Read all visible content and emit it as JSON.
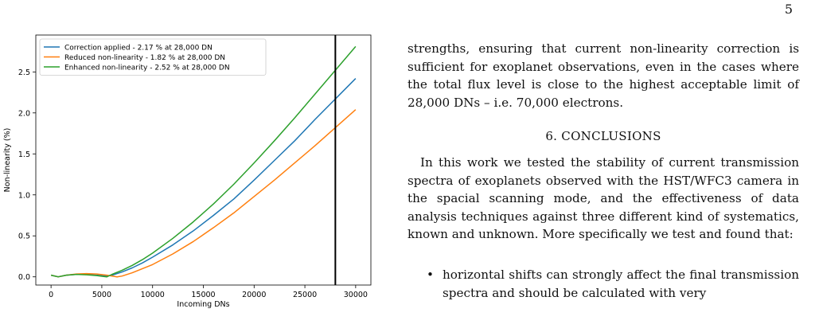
{
  "page_number": "5",
  "paragraphs": {
    "continuation": "strengths, ensuring that current non-linearity correction is sufficient for exoplanet observations, even in the cases where the total flux level is close to the highest acceptable limit of 28,000 DNs – i.e. 70,000 electrons.",
    "section_title": "6. CONCLUSIONS",
    "conclusions_intro": "In this work we tested the stability of current transmission spectra of exoplanets observed with the HST/WFC3 camera in the spacial scanning mode, and the effectiveness of data analysis techniques against three different kind of systematics, known and unknown. More specifically we test and found that:",
    "bullets": [
      "horizontal shifts can strongly affect the final transmission spectra and should be calculated with very"
    ]
  },
  "chart_data": {
    "type": "line",
    "title": "",
    "xlabel": "Incoming DNs",
    "ylabel": "Non-linearity (%)",
    "xlim": [
      -1500,
      31500
    ],
    "ylim": [
      -0.1,
      2.95
    ],
    "xticks": [
      0,
      5000,
      10000,
      15000,
      20000,
      25000,
      30000
    ],
    "xtick_labels": [
      "0",
      "5000",
      "10000",
      "15000",
      "20000",
      "25000",
      "30000"
    ],
    "yticks": [
      0.0,
      0.5,
      1.0,
      1.5,
      2.0,
      2.5
    ],
    "ytick_labels": [
      "0.0",
      "0.5",
      "1.0",
      "1.5",
      "2.0",
      "2.5"
    ],
    "grid": false,
    "legend_position": "top-left",
    "vline_x": 28000,
    "vline_color": "#000000",
    "series": [
      {
        "name": "Correction applied - 2.17 % at 28,000 DN",
        "color": "#1f77b4",
        "x": [
          0,
          700,
          1500,
          2500,
          3500,
          4500,
          5500,
          6000,
          7000,
          8000,
          9000,
          10000,
          12000,
          14000,
          16000,
          18000,
          20000,
          22000,
          24000,
          26000,
          28000,
          30000
        ],
        "y": [
          0.02,
          0.0,
          0.02,
          0.03,
          0.03,
          0.02,
          0.01,
          0.02,
          0.06,
          0.11,
          0.17,
          0.24,
          0.39,
          0.56,
          0.75,
          0.95,
          1.18,
          1.42,
          1.66,
          1.92,
          2.17,
          2.42
        ]
      },
      {
        "name": "Reduced non-linearity - 1.82 % at 28,000 DN",
        "color": "#ff7f0e",
        "x": [
          0,
          700,
          1500,
          2500,
          3500,
          4500,
          5500,
          6500,
          7000,
          8000,
          9000,
          10000,
          12000,
          14000,
          16000,
          18000,
          20000,
          22000,
          24000,
          26000,
          28000,
          30000
        ],
        "y": [
          0.02,
          0.0,
          0.02,
          0.035,
          0.04,
          0.035,
          0.02,
          0.0,
          0.01,
          0.05,
          0.1,
          0.15,
          0.28,
          0.43,
          0.6,
          0.78,
          0.98,
          1.18,
          1.39,
          1.6,
          1.82,
          2.04
        ]
      },
      {
        "name": "Enhanced non-linearity - 2.52 % at 28,000 DN",
        "color": "#2ca02c",
        "x": [
          0,
          700,
          1500,
          2500,
          3500,
          4500,
          5500,
          6000,
          7000,
          8000,
          9000,
          10000,
          12000,
          14000,
          16000,
          18000,
          20000,
          22000,
          24000,
          26000,
          28000,
          30000
        ],
        "y": [
          0.02,
          0.0,
          0.02,
          0.03,
          0.025,
          0.015,
          0.0,
          0.03,
          0.08,
          0.14,
          0.21,
          0.29,
          0.47,
          0.67,
          0.89,
          1.13,
          1.39,
          1.66,
          1.94,
          2.23,
          2.52,
          2.81
        ]
      }
    ]
  }
}
